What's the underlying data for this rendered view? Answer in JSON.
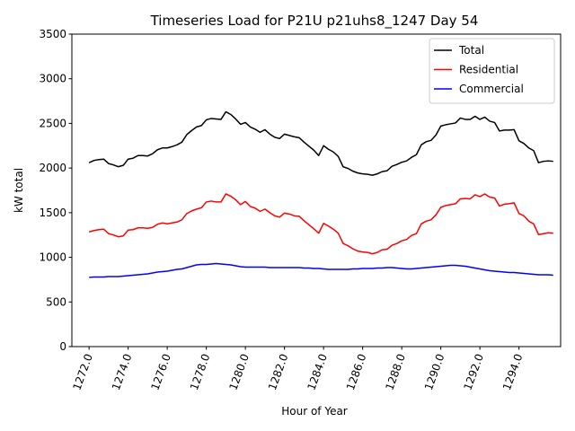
{
  "chart_data": {
    "type": "line",
    "title": "Timeseries Load for P21U p21uhs8_1247  Day 54",
    "xlabel": "Hour of Year",
    "ylabel": "kW total",
    "xlim": [
      1271.12,
      1296.13
    ],
    "ylim": [
      0,
      3500
    ],
    "xticks": [
      1272,
      1274,
      1276,
      1278,
      1280,
      1282,
      1284,
      1286,
      1288,
      1290,
      1292,
      1294
    ],
    "xtick_labels": [
      "1272.0",
      "1274.0",
      "1276.0",
      "1278.0",
      "1280.0",
      "1282.0",
      "1284.0",
      "1286.0",
      "1288.0",
      "1290.0",
      "1292.0",
      "1294.0"
    ],
    "yticks": [
      0,
      500,
      1000,
      1500,
      2000,
      2500,
      3000,
      3500
    ],
    "ytick_labels": [
      "0",
      "500",
      "1000",
      "1500",
      "2000",
      "2500",
      "3000",
      "3500"
    ],
    "legend_position": "top-right",
    "x_start": 1272.0,
    "x_step": 0.25,
    "series": [
      {
        "name": "Total",
        "color": "#000000",
        "values": [
          2060,
          2085,
          2095,
          2100,
          2050,
          2035,
          2015,
          2030,
          2100,
          2110,
          2140,
          2140,
          2135,
          2160,
          2205,
          2225,
          2225,
          2240,
          2260,
          2290,
          2375,
          2420,
          2460,
          2475,
          2540,
          2555,
          2550,
          2545,
          2630,
          2600,
          2550,
          2490,
          2510,
          2460,
          2435,
          2400,
          2430,
          2380,
          2345,
          2330,
          2380,
          2365,
          2350,
          2340,
          2290,
          2245,
          2200,
          2140,
          2250,
          2210,
          2180,
          2130,
          2015,
          1995,
          1965,
          1945,
          1935,
          1930,
          1920,
          1935,
          1960,
          1970,
          2020,
          2040,
          2065,
          2080,
          2120,
          2150,
          2260,
          2295,
          2310,
          2370,
          2470,
          2485,
          2495,
          2505,
          2560,
          2545,
          2545,
          2580,
          2545,
          2570,
          2525,
          2510,
          2415,
          2425,
          2425,
          2430,
          2305,
          2275,
          2225,
          2195,
          2060,
          2075,
          2080,
          2075
        ]
      },
      {
        "name": "Residential",
        "color": "#ff0000",
        "values": [
          1285,
          1300,
          1310,
          1315,
          1265,
          1250,
          1230,
          1240,
          1305,
          1310,
          1330,
          1330,
          1325,
          1335,
          1370,
          1385,
          1375,
          1385,
          1395,
          1420,
          1490,
          1520,
          1540,
          1555,
          1620,
          1630,
          1620,
          1620,
          1710,
          1685,
          1645,
          1590,
          1625,
          1570,
          1550,
          1515,
          1540,
          1500,
          1465,
          1450,
          1495,
          1485,
          1465,
          1460,
          1410,
          1365,
          1320,
          1270,
          1380,
          1350,
          1315,
          1270,
          1155,
          1130,
          1095,
          1070,
          1060,
          1055,
          1040,
          1055,
          1085,
          1090,
          1135,
          1155,
          1185,
          1200,
          1245,
          1265,
          1375,
          1405,
          1420,
          1475,
          1560,
          1580,
          1590,
          1600,
          1655,
          1660,
          1655,
          1700,
          1680,
          1710,
          1675,
          1665,
          1575,
          1595,
          1600,
          1610,
          1490,
          1465,
          1405,
          1375,
          1255,
          1265,
          1275,
          1270
        ]
      },
      {
        "name": "Commercial",
        "color": "#0000ff",
        "values": [
          775,
          780,
          780,
          780,
          785,
          785,
          785,
          790,
          795,
          800,
          805,
          810,
          815,
          825,
          835,
          840,
          845,
          855,
          865,
          870,
          885,
          900,
          915,
          920,
          920,
          925,
          930,
          925,
          920,
          915,
          905,
          895,
          890,
          890,
          890,
          890,
          890,
          885,
          885,
          885,
          885,
          885,
          885,
          885,
          880,
          880,
          875,
          875,
          870,
          865,
          865,
          865,
          865,
          865,
          870,
          870,
          875,
          875,
          875,
          880,
          880,
          885,
          885,
          880,
          875,
          870,
          870,
          875,
          880,
          885,
          890,
          895,
          900,
          905,
          910,
          910,
          905,
          900,
          890,
          880,
          870,
          860,
          850,
          845,
          840,
          835,
          830,
          830,
          825,
          820,
          815,
          810,
          805,
          805,
          805,
          800
        ]
      }
    ]
  }
}
